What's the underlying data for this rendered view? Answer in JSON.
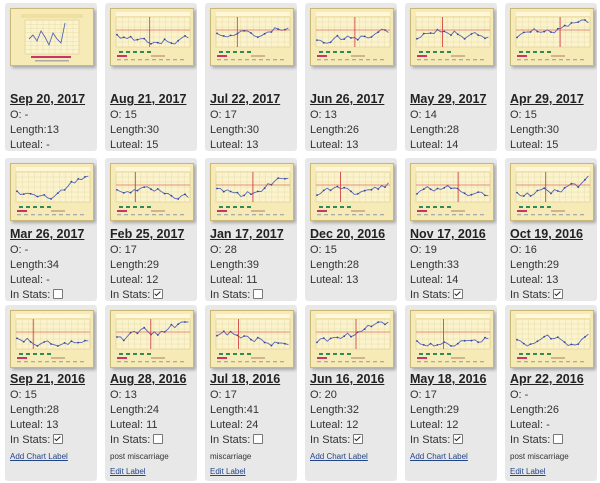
{
  "labels": {
    "ovulation": "O: ",
    "length": "Length:",
    "luteal": "Luteal: ",
    "in_stats": "In Stats:"
  },
  "rows": [
    [
      {
        "date": "Sep 20, 2017",
        "o": "-",
        "length": "13",
        "luteal": "-",
        "in_stats": false,
        "note": "",
        "link": "",
        "thumb": "first"
      },
      {
        "date": "Aug 21, 2017",
        "o": "15",
        "length": "30",
        "luteal": "15",
        "in_stats": true,
        "note": "",
        "link": "",
        "thumb": "chart"
      },
      {
        "date": "Jul 22, 2017",
        "o": "17",
        "length": "30",
        "luteal": "13",
        "in_stats": true,
        "note": "",
        "link": "",
        "thumb": "chart"
      },
      {
        "date": "Jun 26, 2017",
        "o": "13",
        "length": "26",
        "luteal": "13",
        "in_stats": true,
        "note": "",
        "link": "",
        "thumb": "chart"
      },
      {
        "date": "May 29, 2017",
        "o": "14",
        "length": "28",
        "luteal": "14",
        "in_stats": true,
        "note": "",
        "link": "",
        "thumb": "chart"
      },
      {
        "date": "Apr 29, 2017",
        "o": "15",
        "length": "30",
        "luteal": "15",
        "in_stats": true,
        "note": "",
        "link": "",
        "thumb": "chart"
      }
    ],
    [
      {
        "date": "Mar 26, 2017",
        "o": "-",
        "length": "34",
        "luteal": "-",
        "in_stats": false,
        "note": "",
        "link": "",
        "thumb": "chart"
      },
      {
        "date": "Feb 25, 2017",
        "o": "17",
        "length": "29",
        "luteal": "12",
        "in_stats": true,
        "note": "",
        "link": "",
        "thumb": "chart"
      },
      {
        "date": "Jan 17, 2017",
        "o": "28",
        "length": "39",
        "luteal": "11",
        "in_stats": false,
        "note": "",
        "link": "",
        "thumb": "chart"
      },
      {
        "date": "Dec 20, 2016",
        "o": "15",
        "length": "28",
        "luteal": "13",
        "in_stats": null,
        "note": "",
        "link": "",
        "thumb": "chart"
      },
      {
        "date": "Nov 17, 2016",
        "o": "19",
        "length": "33",
        "luteal": "14",
        "in_stats": true,
        "note": "",
        "link": "",
        "thumb": "chart"
      },
      {
        "date": "Oct 19, 2016",
        "o": "16",
        "length": "29",
        "luteal": "13",
        "in_stats": true,
        "note": "",
        "link": "",
        "thumb": "chart"
      }
    ],
    [
      {
        "date": "Sep 21, 2016",
        "o": "15",
        "length": "28",
        "luteal": "13",
        "in_stats": true,
        "note": "",
        "link": "Add Chart Label",
        "thumb": "chart"
      },
      {
        "date": "Aug 28, 2016",
        "o": "13",
        "length": "24",
        "luteal": "11",
        "in_stats": false,
        "note": "post miscarriage",
        "link": "Edit Label",
        "thumb": "chart"
      },
      {
        "date": "Jul 18, 2016",
        "o": "17",
        "length": "41",
        "luteal": "24",
        "in_stats": false,
        "note": "miscarriage",
        "link": "Edit Label",
        "thumb": "chart"
      },
      {
        "date": "Jun 16, 2016",
        "o": "20",
        "length": "32",
        "luteal": "12",
        "in_stats": true,
        "note": "",
        "link": "Add Chart Label",
        "thumb": "chart"
      },
      {
        "date": "May 18, 2016",
        "o": "17",
        "length": "29",
        "luteal": "12",
        "in_stats": true,
        "note": "",
        "link": "Add Chart Label",
        "thumb": "chart"
      },
      {
        "date": "Apr 22, 2016",
        "o": "-",
        "length": "26",
        "luteal": "-",
        "in_stats": false,
        "note": "post miscarriage",
        "link": "Edit Label",
        "thumb": "chart"
      }
    ]
  ],
  "colors": {
    "card_bg": "#e8e8e8",
    "thumb_bg": "#f6ebb6",
    "chart_line": "#5566bb",
    "ovulation_line": "#cc3333",
    "link": "#224488"
  }
}
